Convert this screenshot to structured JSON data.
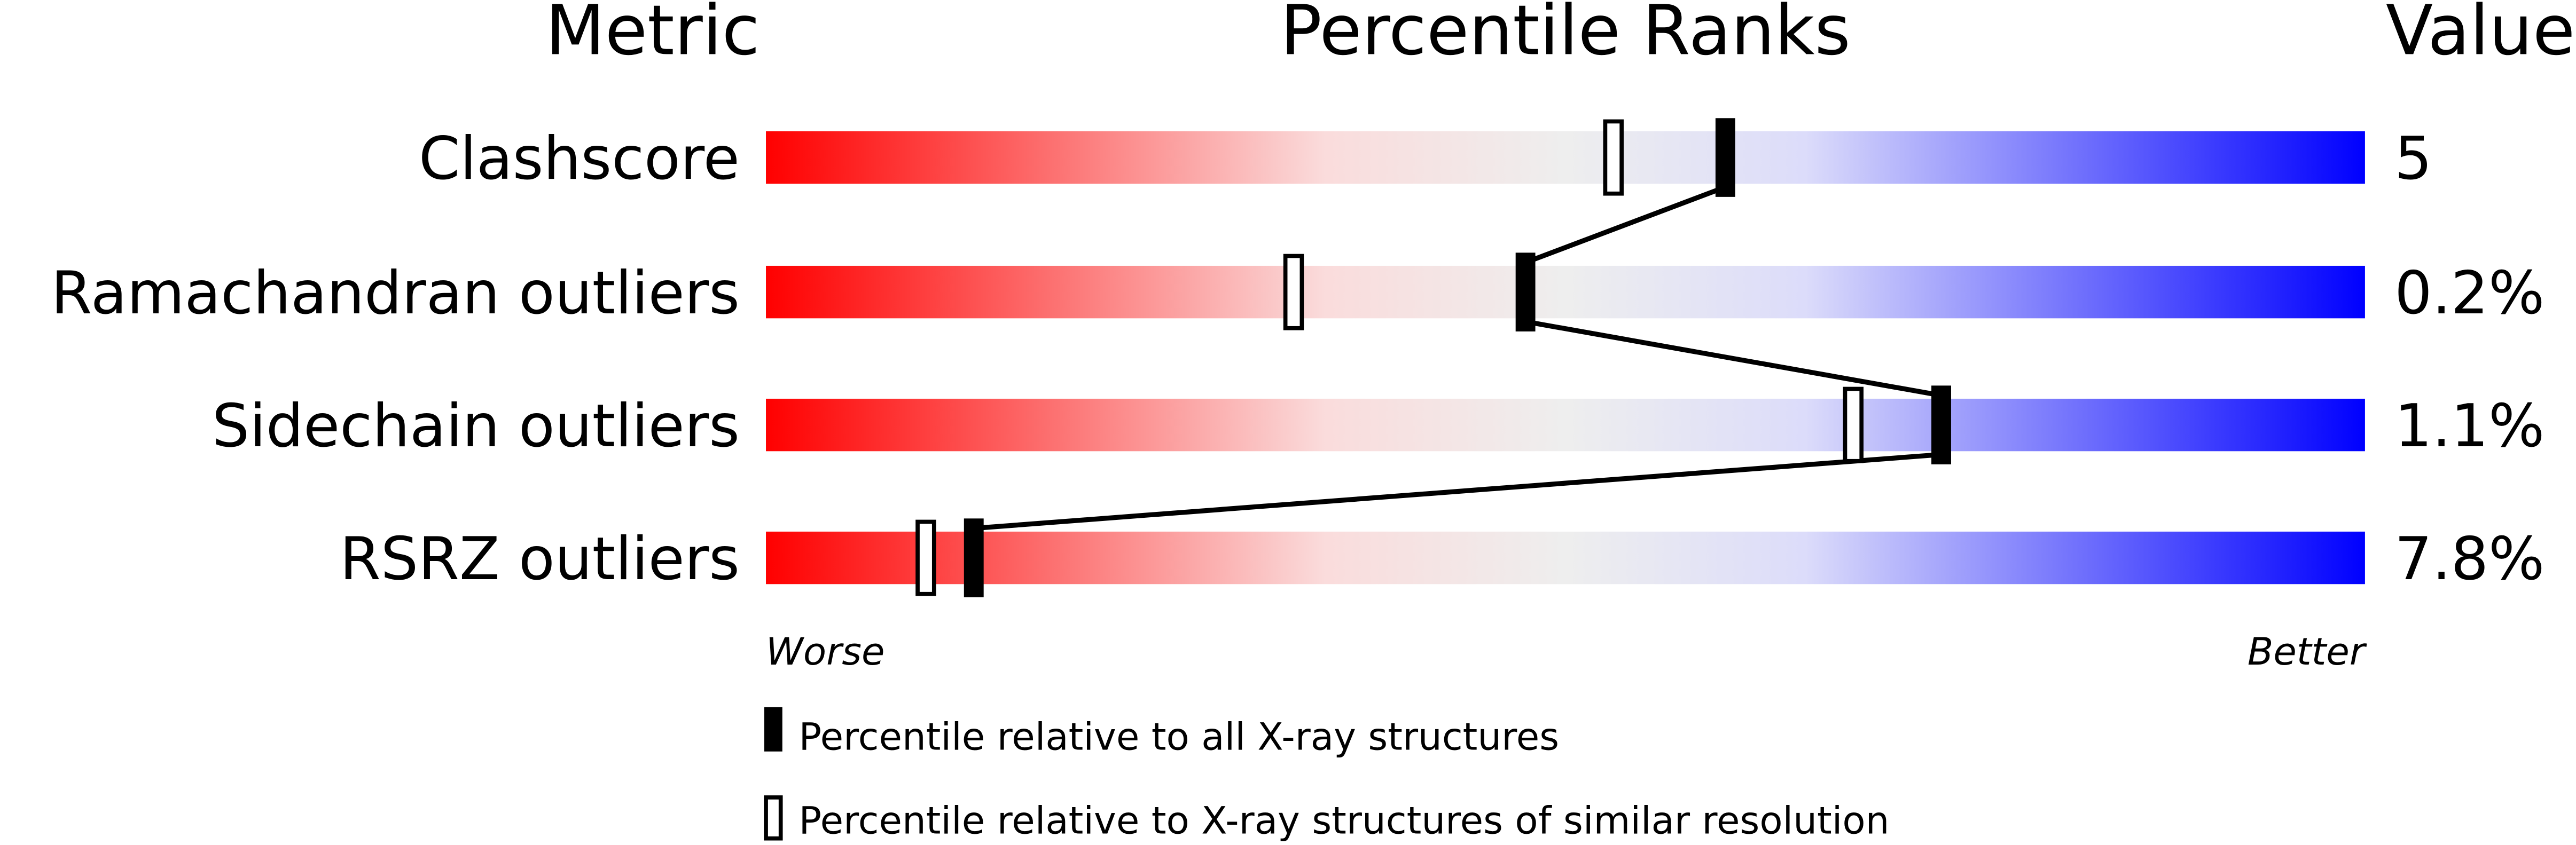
{
  "chart_data": {
    "type": "bar",
    "headers": {
      "metric": "Metric",
      "ranks": "Percentile Ranks",
      "value": "Value"
    },
    "xlim": [
      0,
      100
    ],
    "metrics": [
      {
        "name": "Clashscore",
        "value": "5",
        "percentile_all": 60,
        "percentile_similar": 53
      },
      {
        "name": "Ramachandran outliers",
        "value": "0.2%",
        "percentile_all": 47.5,
        "percentile_similar": 33
      },
      {
        "name": "Sidechain outliers",
        "value": "1.1%",
        "percentile_all": 73.5,
        "percentile_similar": 68
      },
      {
        "name": "RSRZ outliers",
        "value": "7.8%",
        "percentile_all": 13,
        "percentile_similar": 10
      }
    ],
    "axis_labels": {
      "worse": "Worse",
      "better": "Better"
    },
    "legend": [
      {
        "marker": "filled",
        "label": "Percentile relative to all X-ray structures"
      },
      {
        "marker": "hollow",
        "label": "Percentile relative to X-ray structures of similar resolution"
      }
    ],
    "colors": {
      "worse": "#ff0000",
      "middle": "#eeeeee",
      "better": "#0000ff",
      "marker": "#000000"
    }
  }
}
